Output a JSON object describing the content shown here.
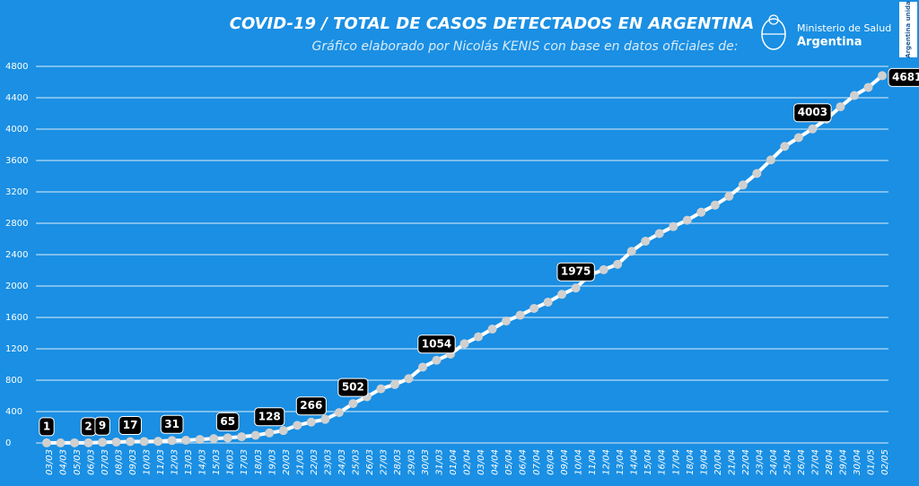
{
  "chart_data": {
    "type": "line",
    "title": "COVID-19  /  TOTAL DE CASOS DETECTADOS EN ARGENTINA",
    "subtitle": "Gráfico elaborado por Nicolás KENIS con base en datos oficiales de:",
    "logo_line1": "Ministerio de Salud",
    "logo_line2": "Argentina",
    "badge": "Argentina unida",
    "categories": [
      "03/03",
      "04/03",
      "05/03",
      "06/03",
      "07/03",
      "08/03",
      "09/03",
      "10/03",
      "11/03",
      "12/03",
      "13/03",
      "14/03",
      "15/03",
      "16/03",
      "17/03",
      "18/03",
      "19/03",
      "20/03",
      "21/03",
      "22/03",
      "23/03",
      "24/03",
      "25/03",
      "26/03",
      "27/03",
      "28/03",
      "29/03",
      "30/03",
      "31/03",
      "01/04",
      "02/04",
      "03/04",
      "04/04",
      "05/04",
      "06/04",
      "07/04",
      "08/04",
      "09/04",
      "10/04",
      "11/04",
      "12/04",
      "13/04",
      "14/04",
      "15/04",
      "16/04",
      "17/04",
      "18/04",
      "19/04",
      "20/04",
      "21/04",
      "22/04",
      "23/04",
      "24/04",
      "25/04",
      "26/04",
      "27/04",
      "28/04",
      "29/04",
      "30/04",
      "01/05",
      "02/05"
    ],
    "values": [
      1,
      1,
      2,
      2,
      9,
      12,
      17,
      19,
      21,
      31,
      34,
      45,
      56,
      65,
      79,
      97,
      128,
      158,
      225,
      266,
      301,
      387,
      502,
      589,
      690,
      745,
      820,
      966,
      1054,
      1133,
      1265,
      1353,
      1451,
      1554,
      1628,
      1715,
      1795,
      1894,
      1975,
      2142,
      2208,
      2277,
      2443,
      2571,
      2669,
      2758,
      2839,
      2941,
      3031,
      3144,
      3288,
      3435,
      3607,
      3780,
      3892,
      4003,
      4127,
      4285,
      4428,
      4532,
      4681
    ],
    "value_labels": [
      "1",
      null,
      null,
      "2",
      "9",
      null,
      "17",
      null,
      null,
      "31",
      null,
      null,
      null,
      "65",
      null,
      null,
      "128",
      null,
      null,
      "266",
      null,
      null,
      "502",
      null,
      null,
      null,
      null,
      null,
      "1054",
      null,
      null,
      null,
      null,
      null,
      null,
      null,
      null,
      null,
      "1975",
      null,
      null,
      null,
      null,
      null,
      null,
      null,
      null,
      null,
      null,
      null,
      null,
      null,
      null,
      null,
      null,
      "4003",
      null,
      null,
      null,
      null,
      "4681"
    ],
    "color": "#ffffff",
    "marker_color": "#d0d0d0",
    "ylim": [
      0,
      4800
    ],
    "yticks": [
      0,
      400,
      800,
      1200,
      1600,
      2000,
      2400,
      2800,
      3200,
      3600,
      4000,
      4400,
      4800
    ],
    "grid": true
  }
}
